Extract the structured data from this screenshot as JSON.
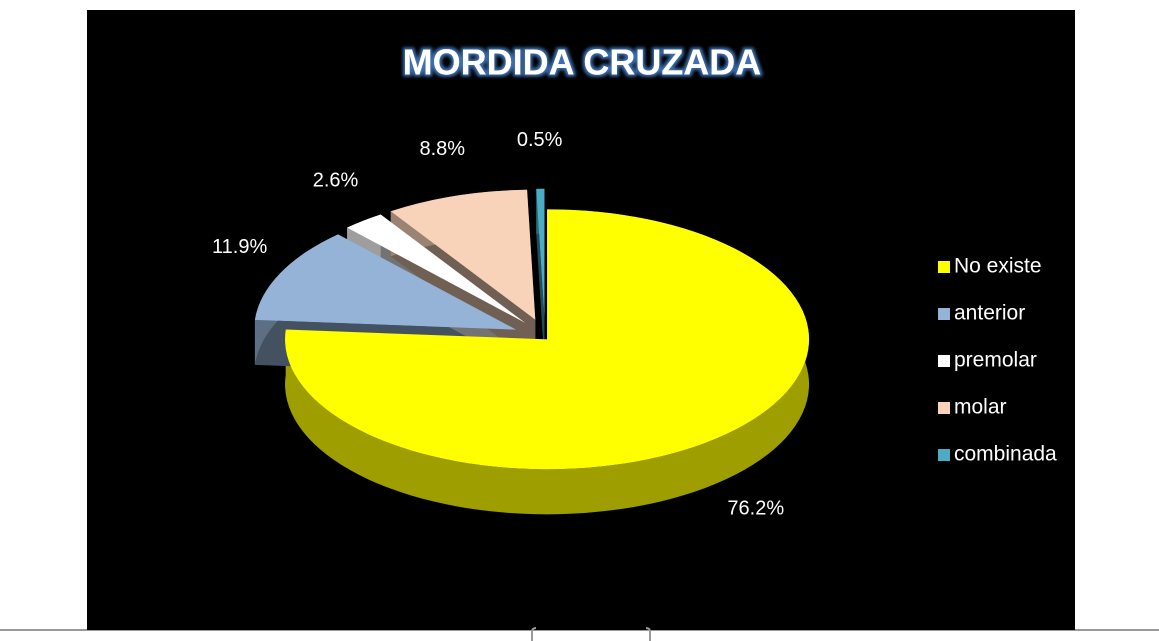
{
  "chart_data": {
    "type": "pie",
    "title": "MORDIDA CRUZADA",
    "categories": [
      "No existe",
      "anterior",
      "premolar",
      "molar",
      "combinada"
    ],
    "values": [
      76.2,
      11.9,
      2.6,
      8.8,
      0.5
    ],
    "value_labels": [
      "76.2%",
      "11.9%",
      "2.6%",
      "8.8%",
      "0.5%"
    ],
    "colors": [
      "#ffff00",
      "#95b3d7",
      "#ffffff",
      "#f9d3b9",
      "#4bacc6"
    ],
    "legend": "right"
  }
}
